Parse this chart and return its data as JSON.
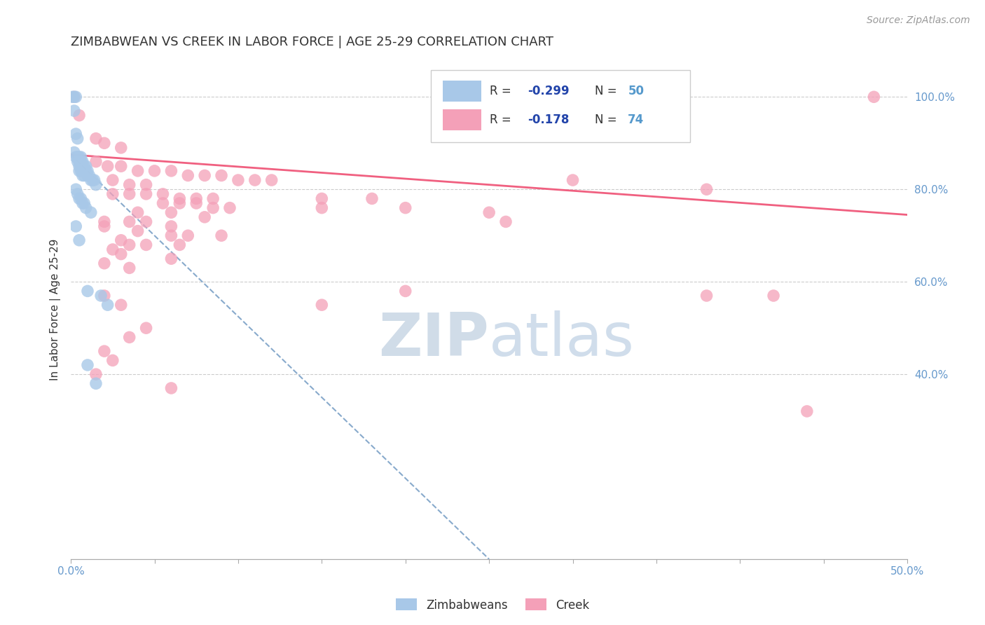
{
  "title": "ZIMBABWEAN VS CREEK IN LABOR FORCE | AGE 25-29 CORRELATION CHART",
  "source_text": "Source: ZipAtlas.com",
  "ylabel": "In Labor Force | Age 25-29",
  "xlim": [
    0.0,
    0.5
  ],
  "ylim": [
    0.0,
    1.08
  ],
  "xtick_positions": [
    0.0,
    0.05,
    0.1,
    0.15,
    0.2,
    0.25,
    0.3,
    0.35,
    0.4,
    0.45,
    0.5
  ],
  "xtick_labels": [
    "0.0%",
    "",
    "",
    "",
    "",
    "",
    "",
    "",
    "",
    "",
    "50.0%"
  ],
  "yticks_right": [
    0.4,
    0.6,
    0.8,
    1.0
  ],
  "ytick_right_labels": [
    "40.0%",
    "60.0%",
    "80.0%",
    "100.0%"
  ],
  "blue_R": "-0.299",
  "blue_N": "50",
  "pink_R": "-0.178",
  "pink_N": "74",
  "blue_color": "#A8C8E8",
  "pink_color": "#F4A0B8",
  "blue_line_color": "#88AACC",
  "pink_line_color": "#F06080",
  "grid_color": "#CCCCCC",
  "background_color": "#FFFFFF",
  "title_color": "#333333",
  "title_fontsize": 13,
  "ylabel_color": "#333333",
  "right_tick_color": "#6699CC",
  "legend_box_color": "#DDDDDD",
  "legend_R_color": "#2244AA",
  "legend_N_color": "#5599CC",
  "watermark_color": "#D0DCE8",
  "blue_scatter": [
    [
      0.001,
      1.0
    ],
    [
      0.002,
      1.0
    ],
    [
      0.003,
      1.0
    ],
    [
      0.002,
      0.97
    ],
    [
      0.003,
      0.92
    ],
    [
      0.004,
      0.91
    ],
    [
      0.002,
      0.88
    ],
    [
      0.003,
      0.87
    ],
    [
      0.004,
      0.87
    ],
    [
      0.004,
      0.86
    ],
    [
      0.005,
      0.87
    ],
    [
      0.005,
      0.86
    ],
    [
      0.005,
      0.85
    ],
    [
      0.005,
      0.84
    ],
    [
      0.006,
      0.87
    ],
    [
      0.006,
      0.86
    ],
    [
      0.006,
      0.85
    ],
    [
      0.006,
      0.84
    ],
    [
      0.007,
      0.86
    ],
    [
      0.007,
      0.85
    ],
    [
      0.007,
      0.84
    ],
    [
      0.007,
      0.83
    ],
    [
      0.008,
      0.85
    ],
    [
      0.008,
      0.84
    ],
    [
      0.008,
      0.83
    ],
    [
      0.009,
      0.85
    ],
    [
      0.009,
      0.84
    ],
    [
      0.01,
      0.84
    ],
    [
      0.01,
      0.83
    ],
    [
      0.011,
      0.83
    ],
    [
      0.012,
      0.82
    ],
    [
      0.013,
      0.82
    ],
    [
      0.014,
      0.82
    ],
    [
      0.015,
      0.81
    ],
    [
      0.003,
      0.8
    ],
    [
      0.004,
      0.79
    ],
    [
      0.005,
      0.78
    ],
    [
      0.006,
      0.78
    ],
    [
      0.007,
      0.77
    ],
    [
      0.008,
      0.77
    ],
    [
      0.009,
      0.76
    ],
    [
      0.012,
      0.75
    ],
    [
      0.003,
      0.72
    ],
    [
      0.005,
      0.69
    ],
    [
      0.01,
      0.58
    ],
    [
      0.018,
      0.57
    ],
    [
      0.022,
      0.55
    ],
    [
      0.01,
      0.42
    ],
    [
      0.015,
      0.38
    ]
  ],
  "pink_scatter": [
    [
      0.002,
      1.0
    ],
    [
      0.48,
      1.0
    ],
    [
      0.005,
      0.96
    ],
    [
      0.015,
      0.91
    ],
    [
      0.02,
      0.9
    ],
    [
      0.03,
      0.89
    ],
    [
      0.015,
      0.86
    ],
    [
      0.022,
      0.85
    ],
    [
      0.03,
      0.85
    ],
    [
      0.04,
      0.84
    ],
    [
      0.05,
      0.84
    ],
    [
      0.06,
      0.84
    ],
    [
      0.07,
      0.83
    ],
    [
      0.08,
      0.83
    ],
    [
      0.09,
      0.83
    ],
    [
      0.1,
      0.82
    ],
    [
      0.11,
      0.82
    ],
    [
      0.12,
      0.82
    ],
    [
      0.025,
      0.82
    ],
    [
      0.035,
      0.81
    ],
    [
      0.045,
      0.81
    ],
    [
      0.025,
      0.79
    ],
    [
      0.035,
      0.79
    ],
    [
      0.045,
      0.79
    ],
    [
      0.055,
      0.79
    ],
    [
      0.065,
      0.78
    ],
    [
      0.075,
      0.78
    ],
    [
      0.085,
      0.78
    ],
    [
      0.15,
      0.78
    ],
    [
      0.18,
      0.78
    ],
    [
      0.055,
      0.77
    ],
    [
      0.065,
      0.77
    ],
    [
      0.075,
      0.77
    ],
    [
      0.085,
      0.76
    ],
    [
      0.095,
      0.76
    ],
    [
      0.15,
      0.76
    ],
    [
      0.2,
      0.76
    ],
    [
      0.3,
      0.82
    ],
    [
      0.38,
      0.8
    ],
    [
      0.04,
      0.75
    ],
    [
      0.06,
      0.75
    ],
    [
      0.08,
      0.74
    ],
    [
      0.02,
      0.73
    ],
    [
      0.035,
      0.73
    ],
    [
      0.045,
      0.73
    ],
    [
      0.06,
      0.72
    ],
    [
      0.02,
      0.72
    ],
    [
      0.04,
      0.71
    ],
    [
      0.06,
      0.7
    ],
    [
      0.07,
      0.7
    ],
    [
      0.09,
      0.7
    ],
    [
      0.03,
      0.69
    ],
    [
      0.035,
      0.68
    ],
    [
      0.045,
      0.68
    ],
    [
      0.065,
      0.68
    ],
    [
      0.025,
      0.67
    ],
    [
      0.03,
      0.66
    ],
    [
      0.06,
      0.65
    ],
    [
      0.02,
      0.64
    ],
    [
      0.035,
      0.63
    ],
    [
      0.02,
      0.57
    ],
    [
      0.03,
      0.55
    ],
    [
      0.045,
      0.5
    ],
    [
      0.035,
      0.48
    ],
    [
      0.02,
      0.45
    ],
    [
      0.025,
      0.43
    ],
    [
      0.015,
      0.4
    ],
    [
      0.06,
      0.37
    ],
    [
      0.15,
      0.55
    ],
    [
      0.2,
      0.58
    ],
    [
      0.25,
      0.75
    ],
    [
      0.26,
      0.73
    ],
    [
      0.38,
      0.57
    ],
    [
      0.42,
      0.57
    ],
    [
      0.44,
      0.32
    ]
  ],
  "blue_trendline": [
    [
      0.0,
      0.875
    ],
    [
      0.25,
      0.0
    ]
  ],
  "pink_trendline": [
    [
      0.0,
      0.875
    ],
    [
      0.5,
      0.745
    ]
  ]
}
